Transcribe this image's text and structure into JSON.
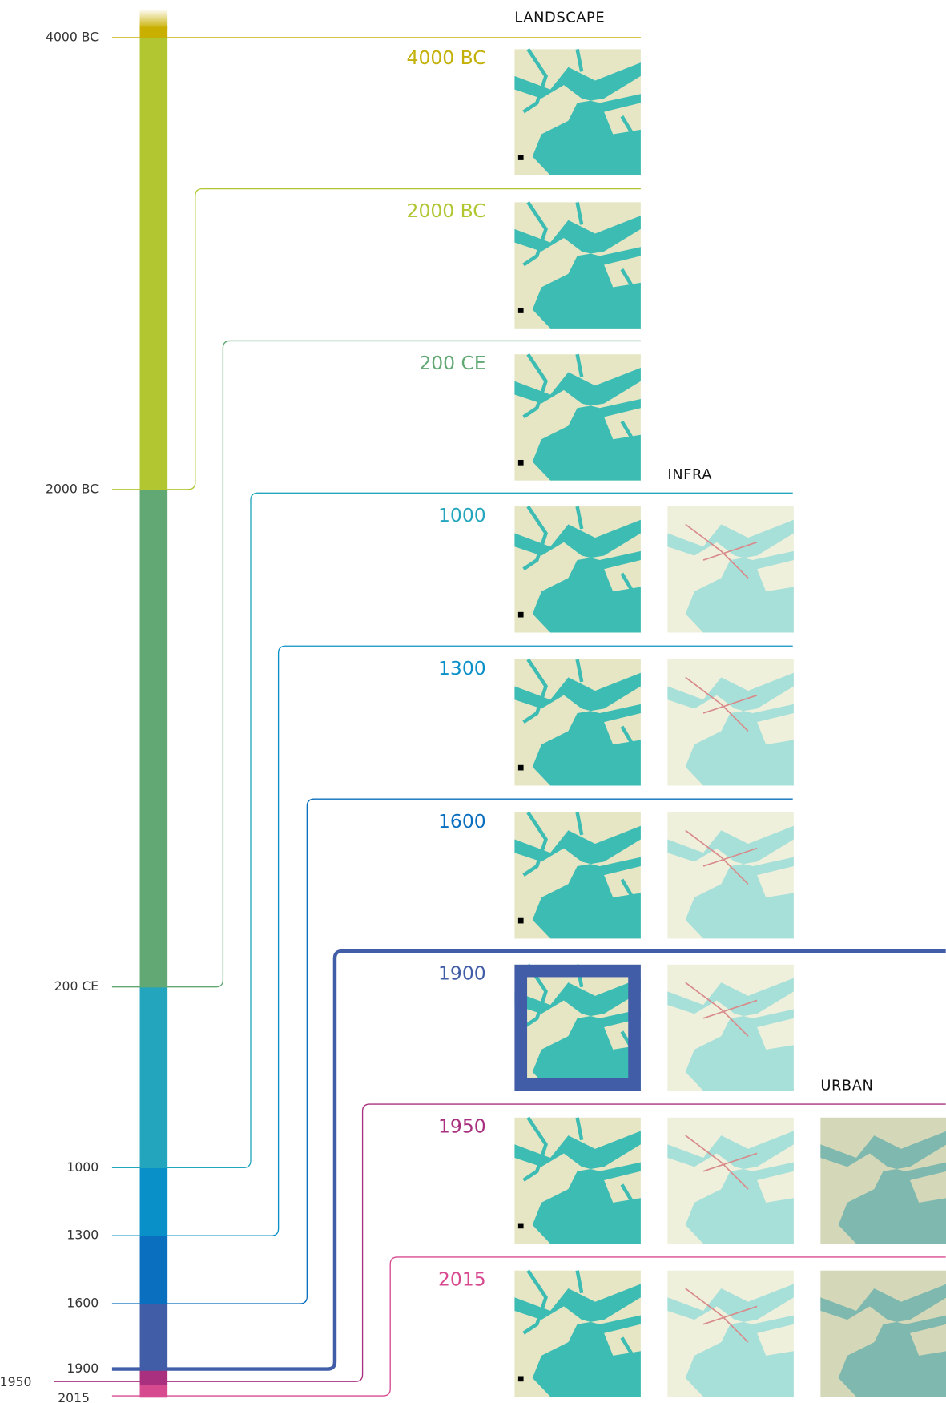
{
  "columns": [
    "LANDSCAPE",
    "INFRA",
    "URBAN"
  ],
  "eras": [
    {
      "label": "4000 BC",
      "axis_label": "4000 BC",
      "color": "#c3b10a"
    },
    {
      "label": "2000 BC",
      "axis_label": "2000 BC",
      "color": "#b2c632"
    },
    {
      "label": "200 CE",
      "axis_label": "200 CE",
      "color": "#62a874"
    },
    {
      "label": "1000",
      "axis_label": "1000",
      "color": "#23a6bd"
    },
    {
      "label": "1300",
      "axis_label": "1300",
      "color": "#0a90c8"
    },
    {
      "label": "1600",
      "axis_label": "1600",
      "color": "#0a6fbe"
    },
    {
      "label": "1900",
      "axis_label": "1900",
      "color": "#425da8"
    },
    {
      "label": "1950",
      "axis_label": "1950",
      "color": "#a8307f"
    },
    {
      "label": "2015",
      "axis_label": "2015",
      "color": "#d84a8f"
    }
  ]
}
